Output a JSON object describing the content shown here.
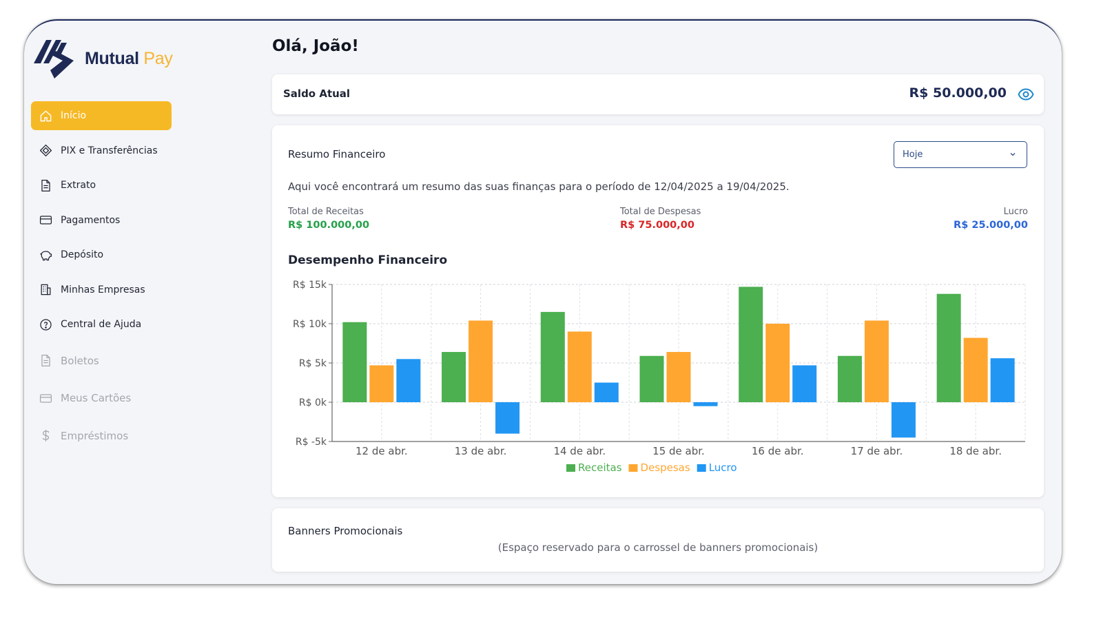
{
  "brand": {
    "name_main": "Mutual",
    "name_accent": "Pay",
    "primary": "#1e2a55",
    "accent": "#f6b926"
  },
  "sidebar": {
    "items": [
      {
        "label": "Início",
        "icon": "home-icon",
        "active": true
      },
      {
        "label": "PIX e Transferências",
        "icon": "pix-icon"
      },
      {
        "label": "Extrato",
        "icon": "document-icon"
      },
      {
        "label": "Pagamentos",
        "icon": "credit-card-icon"
      },
      {
        "label": "Depósito",
        "icon": "piggy-bank-icon"
      },
      {
        "label": "Minhas Empresas",
        "icon": "building-icon"
      },
      {
        "label": "Central de Ajuda",
        "icon": "help-circle-icon"
      }
    ],
    "disabled_items": [
      {
        "label": "Boletos",
        "icon": "document-icon"
      },
      {
        "label": "Meus Cartões",
        "icon": "credit-card-icon"
      },
      {
        "label": "Empréstimos",
        "icon": "dollar-icon"
      }
    ]
  },
  "header": {
    "greeting": "Olá, João!"
  },
  "balance": {
    "label": "Saldo Atual",
    "value": "R$ 50.000,00",
    "toggle_icon": "eye-icon"
  },
  "summary": {
    "title": "Resumo Financeiro",
    "period_selected": "Hoje",
    "description": "Aqui você encontrará um resumo das suas finanças para o período de 12/04/2025 a 19/04/2025.",
    "stats": {
      "revenue_label": "Total de Receitas",
      "revenue_value": "R$ 100.000,00",
      "expense_label": "Total de Despesas",
      "expense_value": "R$ 75.000,00",
      "profit_label": "Lucro",
      "profit_value": "R$ 25.000,00"
    },
    "chart_heading": "Desempenho Financeiro"
  },
  "chart_data": {
    "type": "bar",
    "title": "",
    "xlabel": "",
    "ylabel": "",
    "categories": [
      "12 de abr.",
      "13 de abr.",
      "14 de abr.",
      "15 de abr.",
      "16 de abr.",
      "17 de abr.",
      "18 de abr."
    ],
    "series": [
      {
        "name": "Receitas",
        "color": "#4caf50",
        "values": [
          10200,
          6400,
          11500,
          5900,
          14700,
          5900,
          13800
        ]
      },
      {
        "name": "Despesas",
        "color": "#ffa630",
        "values": [
          4700,
          10400,
          9000,
          6400,
          10000,
          10400,
          8200
        ]
      },
      {
        "name": "Lucro",
        "color": "#2196f3",
        "values": [
          5500,
          -4000,
          2500,
          -500,
          4700,
          -4500,
          5600
        ]
      }
    ],
    "ylim": [
      -5000,
      15000
    ],
    "yticks": [
      15000,
      10000,
      5000,
      0,
      -5000
    ],
    "ytick_labels": [
      "R$ 15k",
      "R$ 10k",
      "R$ 5k",
      "R$ 0k",
      "R$ -5k"
    ],
    "grid": true,
    "legend_position": "bottom-center"
  },
  "promo": {
    "title": "Banners Promocionais",
    "placeholder": "(Espaço reservado para o carrossel de banners promocionais)"
  }
}
